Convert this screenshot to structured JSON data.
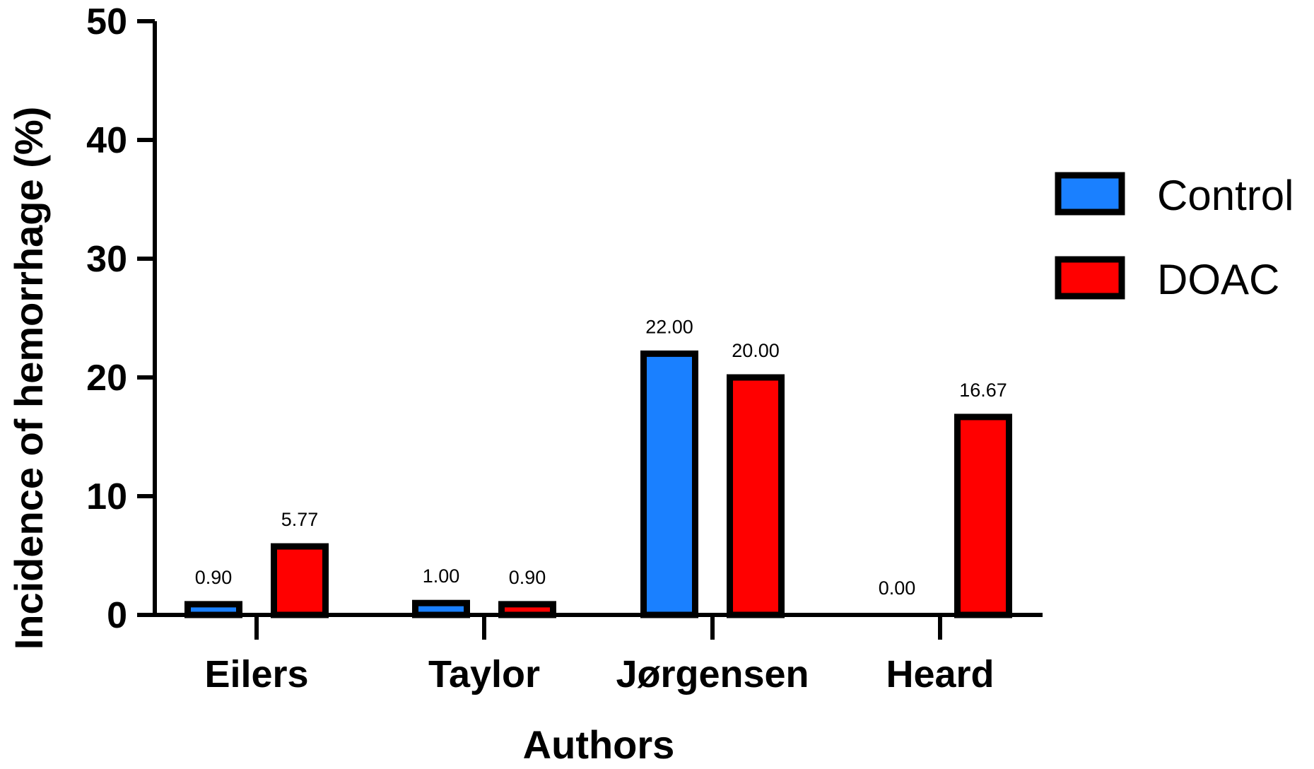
{
  "chart_data": {
    "type": "bar",
    "categories": [
      "Eilers",
      "Taylor",
      "Jørgensen",
      "Heard"
    ],
    "series": [
      {
        "name": "Control",
        "color": "#1a80ff",
        "values": [
          0.9,
          1.0,
          22.0,
          0.0
        ],
        "labels": [
          "0.90",
          "1.00",
          "22.00",
          "0.00"
        ]
      },
      {
        "name": "DOAC",
        "color": "#ff0000",
        "values": [
          5.77,
          0.9,
          20.0,
          16.67
        ],
        "labels": [
          "5.77",
          "0.90",
          "20.00",
          "16.67"
        ]
      }
    ],
    "xlabel": "Authors",
    "ylabel": "Incidence of hemorrhage (%)",
    "ylim": [
      0,
      50
    ],
    "yticks": [
      "0",
      "10",
      "20",
      "30",
      "40",
      "50"
    ],
    "legend_position": "right",
    "grid": false
  }
}
